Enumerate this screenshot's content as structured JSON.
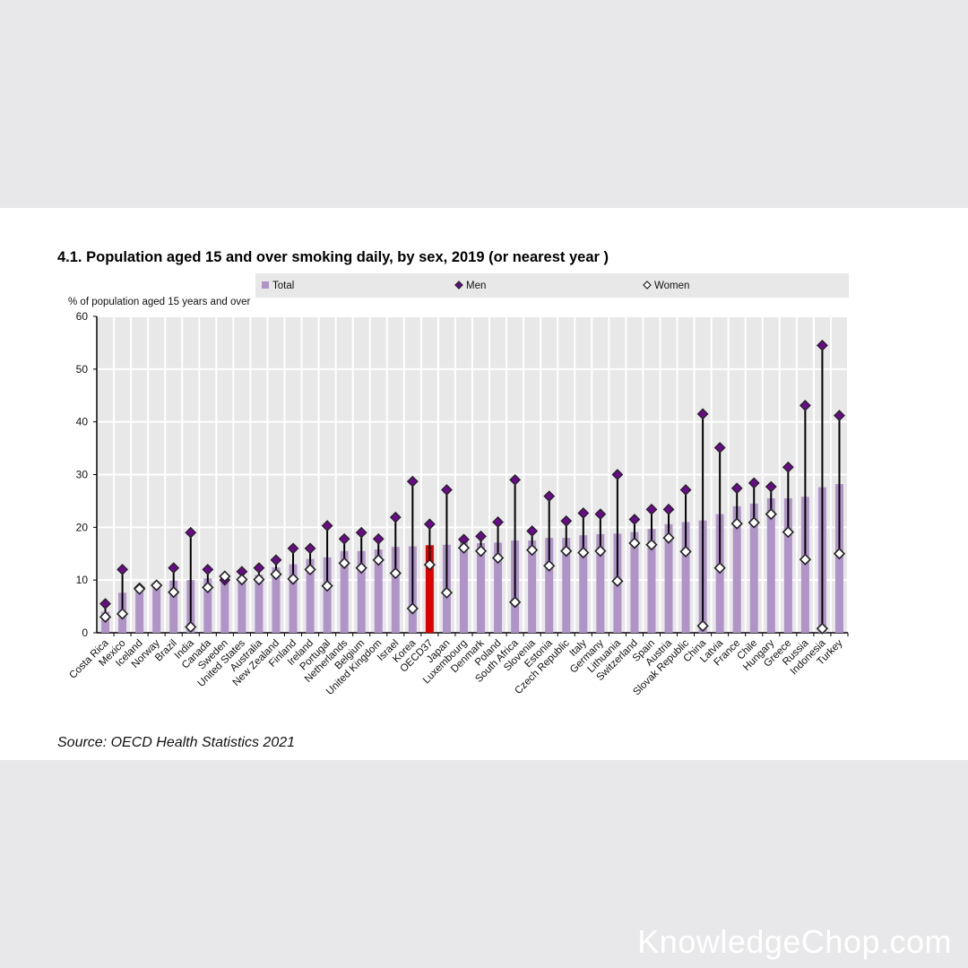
{
  "title": "4.1. Population aged 15 and over smoking daily, by sex, 2019 (or nearest year )",
  "source": "Source: OECD Health Statistics 2021",
  "watermark": "KnowledgeChop.com",
  "colors": {
    "total": "#b094c8",
    "highlight": "#dd0000",
    "men": "#6a0a8a",
    "women": "#ffffff",
    "plot_bg": "#e8e8e8"
  },
  "chart_data": {
    "type": "bar",
    "title": "4.1. Population aged 15 and over smoking daily, by sex, 2019 (or nearest year )",
    "ylabel": "% of population aged 15 years and over",
    "xlabel": "",
    "ylim": [
      0,
      60
    ],
    "yticks": [
      0,
      10,
      20,
      30,
      40,
      50,
      60
    ],
    "grid": true,
    "legend": {
      "placement": "top",
      "entries": [
        "Total",
        "Men",
        "Women"
      ]
    },
    "highlight": "OECD37",
    "categories": [
      "Costa Rica",
      "Mexico",
      "Iceland",
      "Norway",
      "Brazil",
      "India",
      "Canada",
      "Sweden",
      "United States",
      "Australia",
      "New Zealand",
      "Finland",
      "Ireland",
      "Portugal",
      "Netherlands",
      "Belgium",
      "United Kingdom",
      "Israel",
      "Korea",
      "OECD37",
      "Japan",
      "Luxembourg",
      "Denmark",
      "Poland",
      "South Africa",
      "Slovenia",
      "Estonia",
      "Czech Republic",
      "Italy",
      "Germany",
      "Lithuania",
      "Switzerland",
      "Spain",
      "Austria",
      "Slovak Republic",
      "China",
      "Latvia",
      "France",
      "Chile",
      "Hungary",
      "Greece",
      "Russia",
      "Indonesia",
      "Turkey"
    ],
    "series": [
      {
        "name": "Total",
        "kind": "bar",
        "values": [
          4.0,
          7.6,
          8.2,
          9.0,
          9.9,
          10.0,
          10.3,
          10.4,
          10.5,
          11.0,
          12.4,
          13.0,
          14.0,
          14.3,
          15.5,
          15.5,
          15.8,
          16.3,
          16.4,
          16.6,
          16.7,
          17.4,
          17.0,
          17.1,
          17.5,
          17.5,
          18.0,
          18.0,
          18.5,
          18.7,
          18.8,
          19.1,
          19.7,
          20.6,
          21.0,
          21.3,
          22.5,
          24.0,
          24.5,
          25.5,
          25.5,
          25.8,
          27.6,
          28.2
        ]
      },
      {
        "name": "Men",
        "kind": "marker",
        "values": [
          5.5,
          12.0,
          8.5,
          9.0,
          12.3,
          19.0,
          12.0,
          10.0,
          11.6,
          12.3,
          13.8,
          16.0,
          16.0,
          20.3,
          17.8,
          19.0,
          17.8,
          21.9,
          28.7,
          20.6,
          27.1,
          17.7,
          18.3,
          21.0,
          29.0,
          19.3,
          25.9,
          21.2,
          22.7,
          22.5,
          30.0,
          21.5,
          23.4,
          23.4,
          27.1,
          41.5,
          35.1,
          27.4,
          28.4,
          27.7,
          31.4,
          43.1,
          54.5,
          41.2
        ]
      },
      {
        "name": "Women",
        "kind": "marker",
        "values": [
          3.0,
          3.6,
          8.3,
          9.0,
          7.7,
          1.1,
          8.6,
          10.7,
          10.1,
          10.1,
          11.1,
          10.2,
          12.0,
          8.9,
          13.2,
          12.3,
          13.8,
          11.3,
          4.6,
          12.9,
          7.6,
          16.1,
          15.5,
          14.2,
          5.8,
          15.7,
          12.7,
          15.5,
          15.2,
          15.5,
          9.8,
          17.0,
          16.7,
          18.0,
          15.4,
          1.3,
          12.3,
          20.7,
          20.9,
          22.5,
          19.1,
          13.9,
          0.8,
          15.0
        ]
      }
    ]
  }
}
